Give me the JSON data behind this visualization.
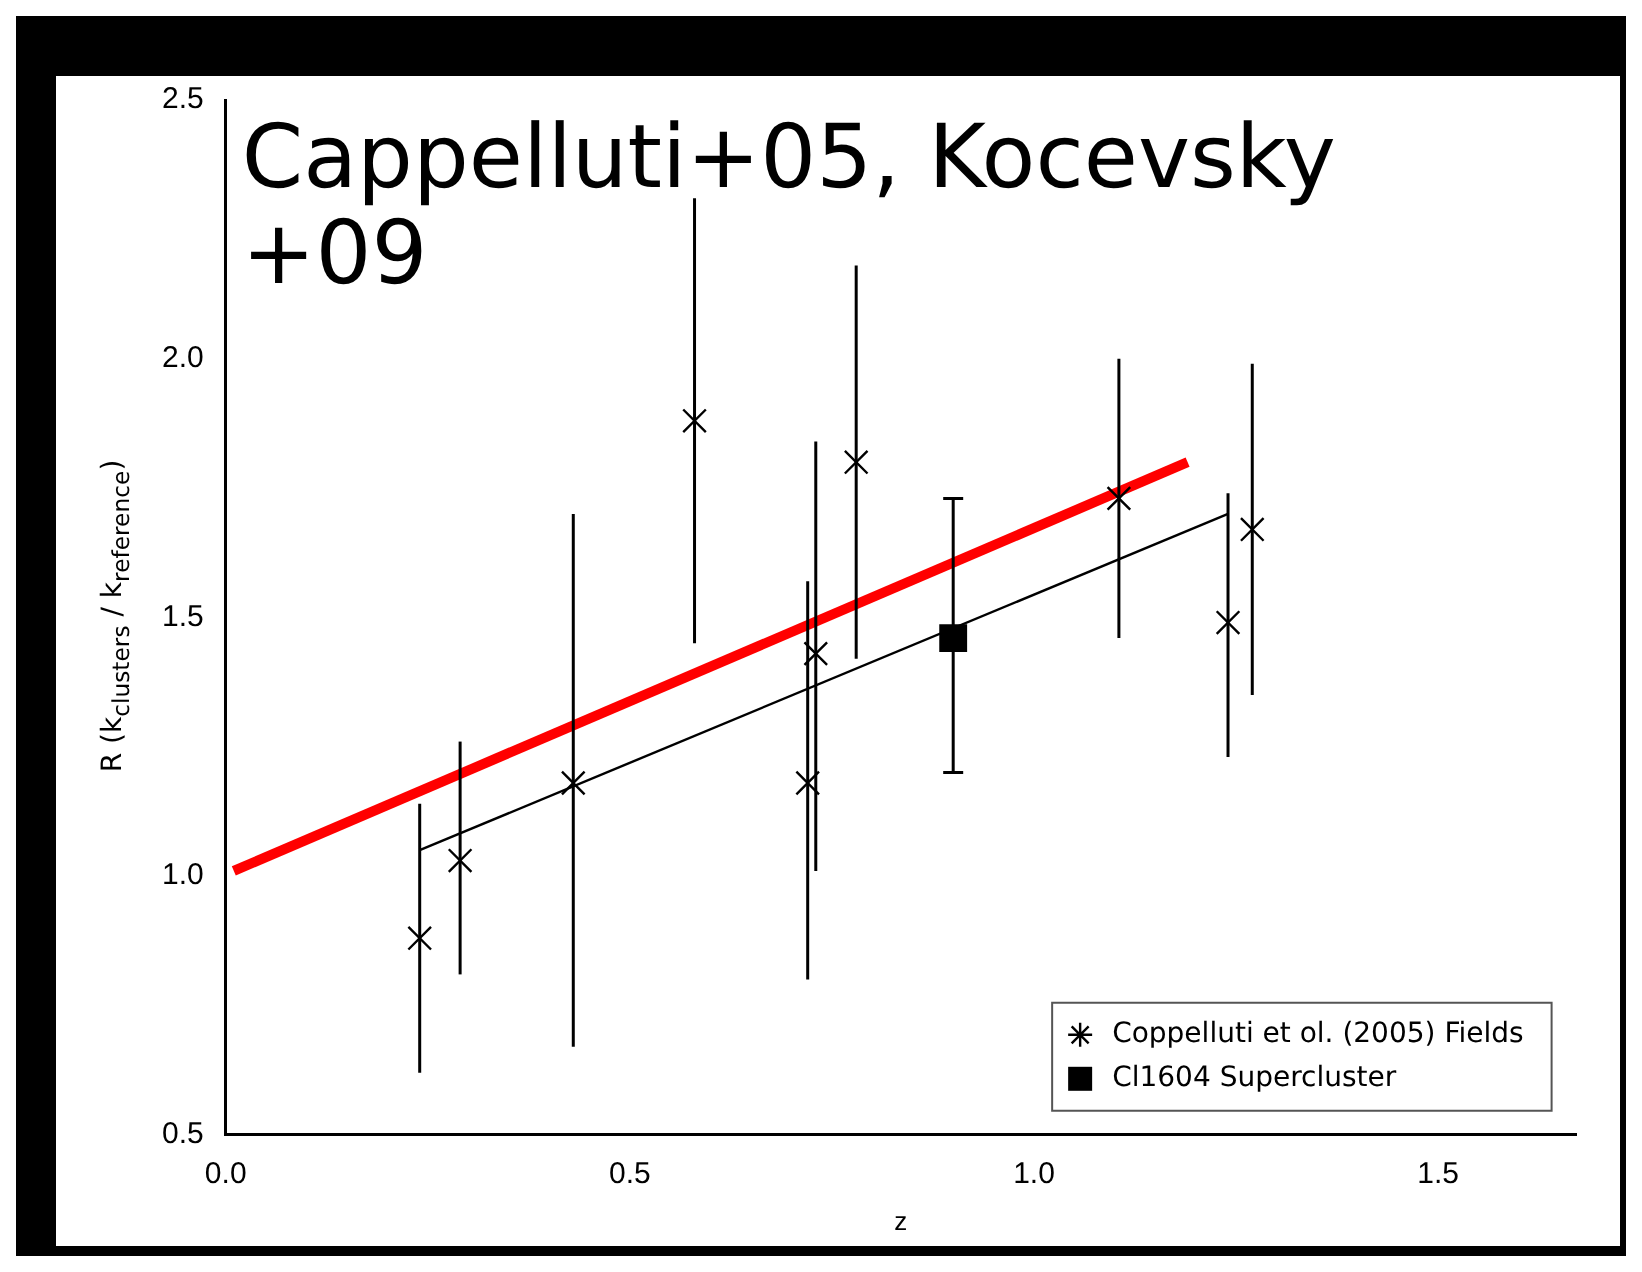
{
  "chart_data": {
    "type": "scatter",
    "xlabel": "z",
    "ylabel": "R (k$_{clusters}$ / k$_{reference}$)",
    "annotations": [
      "Cappelluti+05, Kocevsky +09"
    ],
    "xlim": [
      0,
      1.67
    ],
    "ylim": [
      0.5,
      2.5
    ],
    "xticks": [
      {
        "value": 0,
        "label": "0.0"
      },
      {
        "value": 0.5,
        "label": "0.5"
      },
      {
        "value": 1,
        "label": "1.0"
      },
      {
        "value": 1.5,
        "label": "1.5"
      }
    ],
    "yticks": [
      {
        "value": 0.5,
        "label": "0.5"
      },
      {
        "value": 1,
        "label": "1.0"
      },
      {
        "value": 1.5,
        "label": "1.5"
      },
      {
        "value": 2,
        "label": "2.0"
      },
      {
        "value": 2.5,
        "label": "2.5"
      }
    ],
    "grid": false,
    "legend": "bottom right",
    "series": [
      {
        "name": "Coppelluti et ol. (2005) Fields",
        "marker": "cross",
        "color": "#000000",
        "x": [
          0.24,
          0.29,
          0.43,
          0.58,
          0.72,
          0.73,
          0.78,
          1.105,
          1.24,
          1.27
        ],
        "values": [
          0.88,
          1.03,
          1.18,
          1.88,
          1.18,
          1.43,
          1.8,
          1.73,
          1.49,
          1.67
        ],
        "errors": [
          [
            0.62,
            1.14
          ],
          [
            0.81,
            1.26
          ],
          [
            0.67,
            1.7
          ],
          [
            1.45,
            2.31
          ],
          [
            0.8,
            1.57
          ],
          [
            1.01,
            1.84
          ],
          [
            1.42,
            2.18
          ],
          [
            1.46,
            2.0
          ],
          [
            1.23,
            1.74
          ],
          [
            1.35,
            1.99
          ]
        ]
      },
      {
        "name": "Cl1604 Supercluster",
        "marker": "square",
        "color": "#000000",
        "x": [
          0.9
        ],
        "values": [
          1.46
        ],
        "errors": [
          [
            1.2,
            1.73
          ]
        ]
      },
      {
        "type": "line",
        "color": "#000000",
        "marker": "none",
        "x": [
          0.24,
          1.24
        ],
        "values": [
          1.05,
          1.7
        ]
      },
      {
        "type": "line",
        "color": "#ff0000",
        "marker": "none",
        "x": [
          0.01,
          1.19
        ],
        "values": [
          1.01,
          1.8
        ]
      }
    ]
  }
}
